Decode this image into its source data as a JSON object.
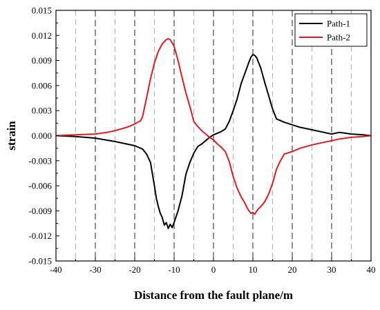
{
  "chart_data": {
    "type": "line",
    "title": "",
    "xlabel": "Distance from the fault plane/m",
    "ylabel": "strain",
    "xlim": [
      -40,
      40
    ],
    "ylim": [
      -0.015,
      0.015
    ],
    "x_ticks": [
      -40,
      -30,
      -20,
      -10,
      0,
      10,
      20,
      30,
      40
    ],
    "x_tick_labels": [
      "-40",
      "-30",
      "-20",
      "-10",
      "0",
      "10",
      "20",
      "30",
      "40"
    ],
    "y_ticks": [
      -0.015,
      -0.012,
      -0.009,
      -0.006,
      -0.003,
      0,
      0.003,
      0.006,
      0.009,
      0.012,
      0.015
    ],
    "y_tick_labels": [
      "-0.015",
      "-0.012",
      "-0.009",
      "-0.006",
      "-0.003",
      "0.000",
      "0.003",
      "0.006",
      "0.009",
      "0.012",
      "0.015"
    ],
    "reference_lines": {
      "dark_dashed_x": [
        -30,
        -20,
        -10,
        0,
        10,
        20,
        30
      ],
      "light_dashed_x": [
        -35,
        -25,
        -15,
        -5,
        5,
        15,
        25,
        35
      ],
      "dark_color": "#555555",
      "light_color": "#b0b0b0"
    },
    "legend_position": "top-right",
    "series": [
      {
        "name": "Path-1",
        "color": "#000000",
        "x": [
          -40,
          -35,
          -30,
          -25,
          -20,
          -18,
          -17,
          -16,
          -15,
          -14.5,
          -14,
          -13.5,
          -13,
          -12.5,
          -12,
          -11.5,
          -11,
          -10.5,
          -10,
          -9.5,
          -9,
          -8,
          -7,
          -6,
          -5,
          -4,
          -3,
          -2,
          -1,
          0,
          1,
          2,
          3,
          4,
          5,
          6,
          7,
          8,
          9,
          9.5,
          10,
          10.5,
          11,
          12,
          13,
          14,
          15,
          16,
          18,
          20,
          22,
          25,
          28,
          30,
          32,
          35,
          38,
          40
        ],
        "y": [
          0,
          -0.0001,
          -0.0003,
          -0.0007,
          -0.0012,
          -0.0016,
          -0.0022,
          -0.0032,
          -0.006,
          -0.0075,
          -0.0085,
          -0.0093,
          -0.0098,
          -0.0107,
          -0.0104,
          -0.0111,
          -0.0106,
          -0.011,
          -0.0104,
          -0.0097,
          -0.009,
          -0.0072,
          -0.0046,
          -0.0032,
          -0.0021,
          -0.0013,
          -0.001,
          -0.0006,
          -0.0002,
          0.0001,
          0.0003,
          0.0005,
          0.0008,
          0.0017,
          0.003,
          0.0044,
          0.0062,
          0.0075,
          0.0088,
          0.0094,
          0.0097,
          0.0096,
          0.0093,
          0.0081,
          0.0064,
          0.0048,
          0.0032,
          0.002,
          0.0016,
          0.0013,
          0.001,
          0.0007,
          0.0004,
          0.0002,
          0.0004,
          0.0002,
          0.0001,
          0
        ]
      },
      {
        "name": "Path-2",
        "color": "#e31a1c",
        "x": [
          -40,
          -35,
          -30,
          -27,
          -25,
          -22,
          -20,
          -18.5,
          -18,
          -17,
          -16,
          -15,
          -14,
          -13,
          -12,
          -11.5,
          -11,
          -10,
          -9,
          -8,
          -7,
          -6,
          -5,
          -4,
          -3,
          -2,
          -1,
          0,
          1,
          2,
          3,
          4,
          5,
          6,
          7,
          8,
          8.5,
          9,
          9.5,
          10,
          10.5,
          11,
          11.5,
          12,
          13,
          14,
          15,
          16,
          17,
          18,
          20,
          22,
          25,
          28,
          30,
          32,
          35,
          38,
          40
        ],
        "y": [
          0,
          0.0001,
          0.0002,
          0.0004,
          0.0006,
          0.001,
          0.0014,
          0.0018,
          0.0023,
          0.0045,
          0.0068,
          0.0087,
          0.0101,
          0.011,
          0.0115,
          0.0116,
          0.0115,
          0.0107,
          0.009,
          0.007,
          0.0051,
          0.0035,
          0.0017,
          0.0011,
          0.0006,
          0.0002,
          -0.0002,
          -0.0005,
          -0.001,
          -0.0014,
          -0.0019,
          -0.0031,
          -0.0049,
          -0.0063,
          -0.0073,
          -0.0081,
          -0.0086,
          -0.009,
          -0.0093,
          -0.0092,
          -0.0094,
          -0.009,
          -0.0087,
          -0.0085,
          -0.0079,
          -0.007,
          -0.0057,
          -0.004,
          -0.003,
          -0.0022,
          -0.0019,
          -0.0015,
          -0.0011,
          -0.0008,
          -0.0006,
          -0.0004,
          -0.0002,
          -0.0001,
          0
        ]
      }
    ]
  }
}
